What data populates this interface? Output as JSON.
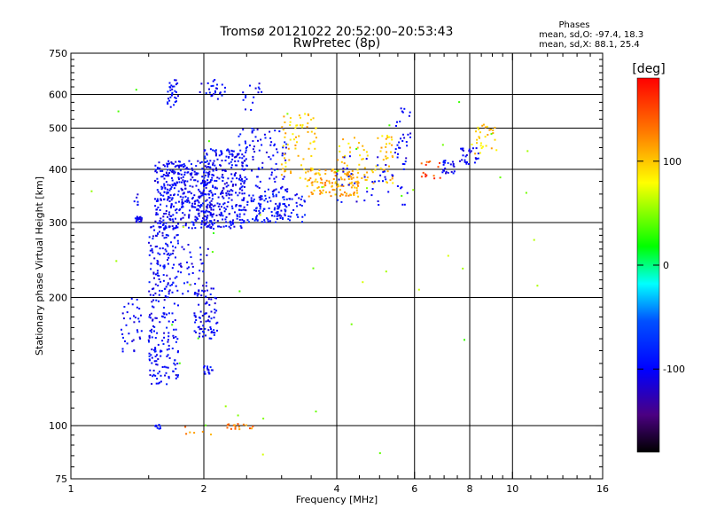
{
  "chart_data": {
    "type": "scatter",
    "title": "Tromsø 20121022 20:52:00–20:53:43",
    "subtitle": "RwPretec (8p)",
    "xlabel": "Frequency [MHz]",
    "ylabel": "Stationary phase Virtual Height [km]",
    "x_scale": "log",
    "y_scale": "log",
    "xlim": [
      1,
      16
    ],
    "ylim": [
      75,
      750
    ],
    "x_ticks": [
      1,
      2,
      4,
      6,
      8,
      10,
      16
    ],
    "y_ticks": [
      75,
      100,
      200,
      300,
      400,
      500,
      600,
      750
    ],
    "x_grid": [
      2,
      4,
      6,
      8,
      10
    ],
    "y_grid": [
      100,
      200,
      300,
      400,
      500,
      600
    ],
    "stats": {
      "title": "Phases",
      "line_o": "mean, sd,O:  -97.4, 18.3",
      "line_x": "mean, sd,X:   88.1, 25.4"
    },
    "colorbar": {
      "label": "[deg]",
      "range": [
        -180,
        180
      ],
      "ticks": [
        100,
        0,
        -100
      ],
      "colormap": "rainbow"
    },
    "point_color_value": "phase [deg]",
    "clusters": [
      {
        "f": [
          1.4,
          1.45
        ],
        "h": [
          300,
          310
        ],
        "phase": -100,
        "n": 25
      },
      {
        "f": [
          1.38,
          1.42
        ],
        "h": [
          330,
          350
        ],
        "phase": -100,
        "n": 6
      },
      {
        "f": [
          1.65,
          1.75
        ],
        "h": [
          560,
          650
        ],
        "phase": -100,
        "n": 30
      },
      {
        "f": [
          1.95,
          2.25
        ],
        "h": [
          585,
          650
        ],
        "phase": -100,
        "n": 25
      },
      {
        "f": [
          2.45,
          2.75
        ],
        "h": [
          550,
          640
        ],
        "phase": -100,
        "n": 15
      },
      {
        "f": [
          1.55,
          2.1
        ],
        "h": [
          290,
          420
        ],
        "phase": -100,
        "n": 420
      },
      {
        "f": [
          2.0,
          2.5
        ],
        "h": [
          290,
          450
        ],
        "phase": -100,
        "n": 260
      },
      {
        "f": [
          2.4,
          3.1
        ],
        "h": [
          300,
          500
        ],
        "phase": -100,
        "n": 160
      },
      {
        "f": [
          2.5,
          3.4
        ],
        "h": [
          300,
          350
        ],
        "phase": -90,
        "n": 90
      },
      {
        "f": [
          3.0,
          3.6
        ],
        "h": [
          380,
          540
        ],
        "phase": 100,
        "n": 70
      },
      {
        "f": [
          3.4,
          4.5
        ],
        "h": [
          345,
          400
        ],
        "phase": 110,
        "n": 120
      },
      {
        "f": [
          4.0,
          5.4
        ],
        "h": [
          370,
          480
        ],
        "phase": 100,
        "n": 75
      },
      {
        "f": [
          4.0,
          5.8
        ],
        "h": [
          330,
          430
        ],
        "phase": -100,
        "n": 45
      },
      {
        "f": [
          5.4,
          5.9
        ],
        "h": [
          410,
          560
        ],
        "phase": -100,
        "n": 30
      },
      {
        "f": [
          6.2,
          6.9
        ],
        "h": [
          380,
          420
        ],
        "phase": 150,
        "n": 15
      },
      {
        "f": [
          6.9,
          7.4
        ],
        "h": [
          390,
          420
        ],
        "phase": -100,
        "n": 22
      },
      {
        "f": [
          7.6,
          8.4
        ],
        "h": [
          410,
          450
        ],
        "phase": -100,
        "n": 28
      },
      {
        "f": [
          8.0,
          9.2
        ],
        "h": [
          430,
          510
        ],
        "phase": 100,
        "n": 30
      },
      {
        "f": [
          1.5,
          1.75
        ],
        "h": [
          125,
          300
        ],
        "phase": -100,
        "n": 260
      },
      {
        "f": [
          1.9,
          2.15
        ],
        "h": [
          160,
          210
        ],
        "phase": -100,
        "n": 80
      },
      {
        "f": [
          1.75,
          2.05
        ],
        "h": [
          200,
          270
        ],
        "phase": -100,
        "n": 40
      },
      {
        "f": [
          1.3,
          1.45
        ],
        "h": [
          145,
          200
        ],
        "phase": -100,
        "n": 35
      },
      {
        "f": [
          2.0,
          2.1
        ],
        "h": [
          132,
          138
        ],
        "phase": -100,
        "n": 15
      },
      {
        "f": [
          1.55,
          1.6
        ],
        "h": [
          97,
          101
        ],
        "phase": -100,
        "n": 10
      },
      {
        "f": [
          2.25,
          2.6
        ],
        "h": [
          98,
          101
        ],
        "phase": 130,
        "n": 18
      },
      {
        "f": [
          1.8,
          2.1
        ],
        "h": [
          95,
          100
        ],
        "phase": 120,
        "n": 6
      },
      {
        "f": [
          1.0,
          12.0
        ],
        "h": [
          85,
          620
        ],
        "phase": 50,
        "n": 45
      }
    ]
  }
}
